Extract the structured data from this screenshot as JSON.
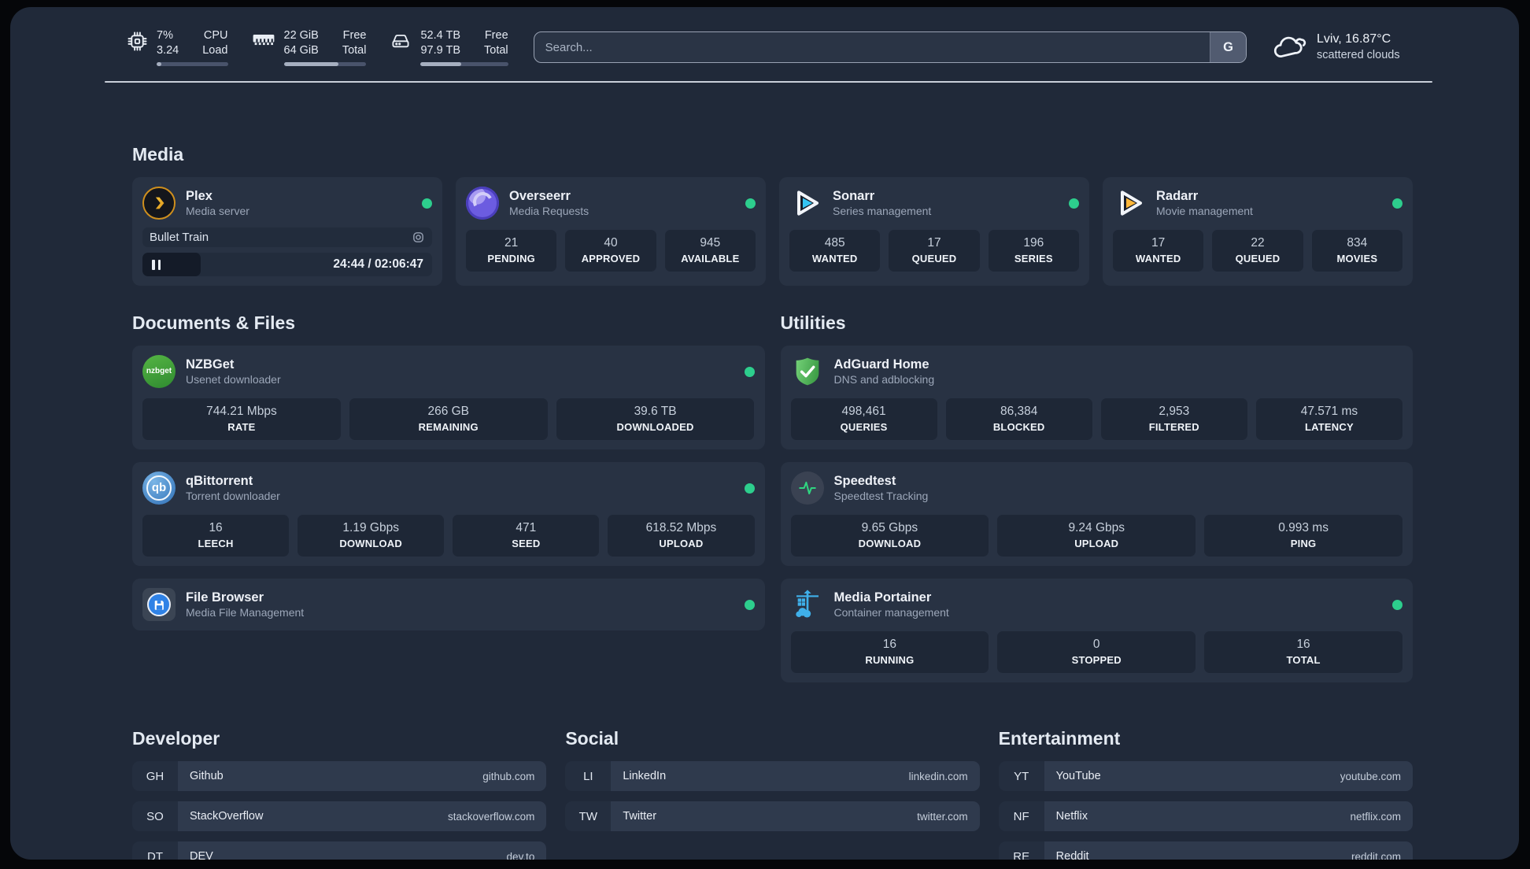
{
  "colors": {
    "accent_green": "#2dce8d",
    "panel_bg": "#202939",
    "card_bg": "#283243"
  },
  "icons": [
    "cpu-chip-icon",
    "memory-icon",
    "disk-icon",
    "cloud-icon",
    "plex-icon",
    "overseerr-icon",
    "sonarr-icon",
    "radarr-icon",
    "nzbget-icon",
    "qbittorrent-icon",
    "filebrowser-icon",
    "adguard-icon",
    "speedtest-icon",
    "portainer-icon",
    "pause-icon",
    "media-type-icon"
  ],
  "header": {
    "cpu": {
      "values": [
        "7%",
        "3.24"
      ],
      "labels": [
        "CPU",
        "Load"
      ],
      "percent": 7
    },
    "memory": {
      "values": [
        "22 GiB",
        "64 GiB"
      ],
      "labels": [
        "Free",
        "Total"
      ],
      "percent": 66
    },
    "disk": {
      "values": [
        "52.4 TB",
        "97.9 TB"
      ],
      "labels": [
        "Free",
        "Total"
      ],
      "percent": 46
    },
    "search": {
      "placeholder": "Search...",
      "provider_label": "G"
    },
    "weather": {
      "line1": "Lviv, 16.87°C",
      "line2": "scattered clouds"
    }
  },
  "sections": {
    "media": {
      "title": "Media",
      "plex": {
        "title": "Plex",
        "subtitle": "Media server",
        "online": true,
        "now_playing": {
          "title": "Bullet Train",
          "time": "24:44 / 02:06:47",
          "progress_percent": 20
        }
      },
      "overseerr": {
        "title": "Overseerr",
        "subtitle": "Media Requests",
        "online": true,
        "stats": [
          {
            "value": "21",
            "label": "PENDING"
          },
          {
            "value": "40",
            "label": "APPROVED"
          },
          {
            "value": "945",
            "label": "AVAILABLE"
          }
        ]
      },
      "sonarr": {
        "title": "Sonarr",
        "subtitle": "Series management",
        "online": true,
        "stats": [
          {
            "value": "485",
            "label": "WANTED"
          },
          {
            "value": "17",
            "label": "QUEUED"
          },
          {
            "value": "196",
            "label": "SERIES"
          }
        ]
      },
      "radarr": {
        "title": "Radarr",
        "subtitle": "Movie management",
        "online": true,
        "stats": [
          {
            "value": "17",
            "label": "WANTED"
          },
          {
            "value": "22",
            "label": "QUEUED"
          },
          {
            "value": "834",
            "label": "MOVIES"
          }
        ]
      }
    },
    "documents": {
      "title": "Documents & Files",
      "nzbget": {
        "title": "NZBGet",
        "subtitle": "Usenet downloader",
        "icon_text": "nzbget",
        "online": true,
        "stats": [
          {
            "value": "744.21 Mbps",
            "label": "RATE"
          },
          {
            "value": "266 GB",
            "label": "REMAINING"
          },
          {
            "value": "39.6 TB",
            "label": "DOWNLOADED"
          }
        ]
      },
      "qbittorrent": {
        "title": "qBittorrent",
        "subtitle": "Torrent downloader",
        "icon_text": "qb",
        "online": true,
        "stats": [
          {
            "value": "16",
            "label": "LEECH"
          },
          {
            "value": "1.19 Gbps",
            "label": "DOWNLOAD"
          },
          {
            "value": "471",
            "label": "SEED"
          },
          {
            "value": "618.52 Mbps",
            "label": "UPLOAD"
          }
        ]
      },
      "filebrowser": {
        "title": "File Browser",
        "subtitle": "Media File Management",
        "online": true
      }
    },
    "utilities": {
      "title": "Utilities",
      "adguard": {
        "title": "AdGuard Home",
        "subtitle": "DNS and adblocking",
        "stats": [
          {
            "value": "498,461",
            "label": "QUERIES"
          },
          {
            "value": "86,384",
            "label": "BLOCKED"
          },
          {
            "value": "2,953",
            "label": "FILTERED"
          },
          {
            "value": "47.571 ms",
            "label": "LATENCY"
          }
        ]
      },
      "speedtest": {
        "title": "Speedtest",
        "subtitle": "Speedtest Tracking",
        "stats": [
          {
            "value": "9.65 Gbps",
            "label": "DOWNLOAD"
          },
          {
            "value": "9.24 Gbps",
            "label": "UPLOAD"
          },
          {
            "value": "0.993 ms",
            "label": "PING"
          }
        ]
      },
      "portainer": {
        "title": "Media Portainer",
        "subtitle": "Container management",
        "online": true,
        "stats": [
          {
            "value": "16",
            "label": "RUNNING"
          },
          {
            "value": "0",
            "label": "STOPPED"
          },
          {
            "value": "16",
            "label": "TOTAL"
          }
        ]
      }
    },
    "bookmarks": {
      "developer": {
        "title": "Developer",
        "items": [
          {
            "abbr": "GH",
            "name": "Github",
            "domain": "github.com"
          },
          {
            "abbr": "SO",
            "name": "StackOverflow",
            "domain": "stackoverflow.com"
          },
          {
            "abbr": "DT",
            "name": "DEV",
            "domain": "dev.to"
          }
        ]
      },
      "social": {
        "title": "Social",
        "items": [
          {
            "abbr": "LI",
            "name": "LinkedIn",
            "domain": "linkedin.com"
          },
          {
            "abbr": "TW",
            "name": "Twitter",
            "domain": "twitter.com"
          }
        ]
      },
      "entertainment": {
        "title": "Entertainment",
        "items": [
          {
            "abbr": "YT",
            "name": "YouTube",
            "domain": "youtube.com"
          },
          {
            "abbr": "NF",
            "name": "Netflix",
            "domain": "netflix.com"
          },
          {
            "abbr": "RE",
            "name": "Reddit",
            "domain": "reddit.com"
          }
        ]
      }
    }
  }
}
